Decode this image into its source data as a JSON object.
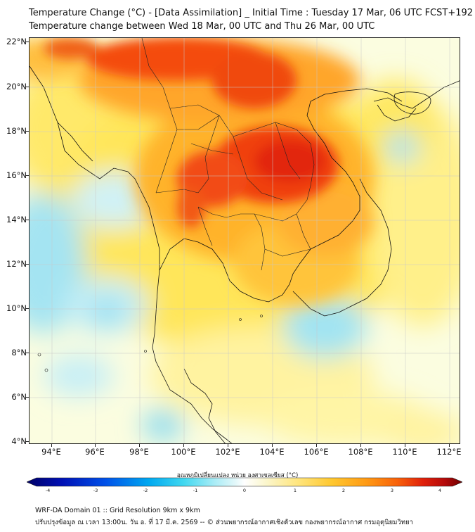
{
  "header": {
    "title_line1": "Temperature Change (°C) - [Data Assimilation] _ Initial Time : Tuesday 17 Mar, 06 UTC FCST+192",
    "title_line2": "Temperature change between Wed 18 Mar, 00 UTC and Thu 26 Mar, 00 UTC"
  },
  "map": {
    "lat_labels": [
      "22°N",
      "20°N",
      "18°N",
      "16°N",
      "14°N",
      "12°N",
      "10°N",
      "8°N",
      "6°N",
      "4°N"
    ],
    "lon_labels": [
      "94°E",
      "96°E",
      "98°E",
      "100°E",
      "102°E",
      "104°E",
      "106°E",
      "108°E",
      "110°E",
      "112°E"
    ],
    "grid": true,
    "field_description_colors": {
      "strong_warming": "#e8200c",
      "warming": "#ff9a1a",
      "slight_warming": "#ffe64d",
      "neutral": "#fbfde0",
      "slight_cooling": "#cdf1f7",
      "cooling": "#9fe3f2"
    }
  },
  "colorbar": {
    "title": "อุณหภูมิเปลี่ยนแปลง หน่วย องศาเซลเซียส (°C)",
    "ticks": [
      "-4",
      "-3",
      "-2",
      "-1",
      "0",
      "1",
      "2",
      "3",
      "4"
    ],
    "colors": [
      "#000066",
      "#0010b4",
      "#0050e8",
      "#00a8f0",
      "#40d8f0",
      "#a8ecf6",
      "#e4f8fa",
      "#ffffff",
      "#fbf6cc",
      "#ffe680",
      "#ffc830",
      "#ff9a14",
      "#f8620a",
      "#e0200a",
      "#b40a0a",
      "#6e0000"
    ]
  },
  "footer": {
    "line1": "WRF-DA Domain 01 :: Grid Resolution 9km x 9km",
    "line2": "ปรับปรุงข้อมูล ณ เวลา 13:00น. วัน อ. ที่ 17 มี.ค. 2569 -- © ส่วนพยากรณ์อากาศเชิงตัวเลข กองพยากรณ์อากาศ กรมอุตุนิยมวิทยา"
  }
}
